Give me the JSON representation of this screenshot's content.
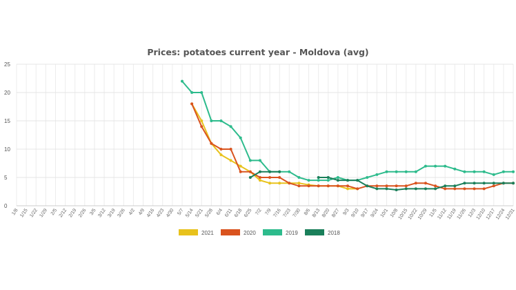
{
  "chart_data": {
    "type": "line",
    "title": "Prices: potatoes current year - Moldova (avg)",
    "xlabel": "",
    "ylabel": "",
    "ylim": [
      0,
      25
    ],
    "yticks": [
      0,
      5,
      10,
      15,
      20,
      25
    ],
    "grid": true,
    "legend_position": "bottom",
    "x": [
      "1/8",
      "1/15",
      "1/22",
      "1/29",
      "2/5",
      "2/12",
      "2/19",
      "2/26",
      "3/5",
      "3/12",
      "3/19",
      "3/26",
      "4/2",
      "4/9",
      "4/16",
      "4/23",
      "4/30",
      "5/7",
      "5/14",
      "5/21",
      "5/28",
      "6/4",
      "6/11",
      "6/18",
      "6/25",
      "7/2",
      "7/9",
      "7/16",
      "7/23",
      "7/30",
      "8/6",
      "8/13",
      "8/20",
      "8/27",
      "9/3",
      "9/10",
      "9/17",
      "9/24",
      "10/1",
      "10/8",
      "10/15",
      "10/22",
      "10/29",
      "11/5",
      "11/12",
      "11/19",
      "11/26",
      "12/3",
      "12/10",
      "12/17",
      "12/24",
      "12/31"
    ],
    "series": [
      {
        "name": "2021",
        "color": "#e8c21c",
        "values": [
          null,
          null,
          null,
          null,
          null,
          null,
          null,
          null,
          null,
          null,
          null,
          null,
          null,
          null,
          null,
          null,
          null,
          null,
          18,
          15,
          11,
          9,
          8,
          7,
          6,
          4.5,
          4,
          4,
          4,
          4,
          3.7,
          3.5,
          3.5,
          3.5,
          3,
          3,
          null,
          null,
          null,
          null,
          null,
          null,
          null,
          null,
          null,
          null,
          null,
          null,
          null,
          null,
          null,
          null
        ]
      },
      {
        "name": "2020",
        "color": "#d9531e",
        "values": [
          null,
          null,
          null,
          null,
          null,
          null,
          null,
          null,
          null,
          null,
          null,
          null,
          null,
          null,
          null,
          null,
          null,
          null,
          18,
          14,
          11,
          10,
          10,
          6,
          6,
          5,
          5,
          5,
          4,
          3.5,
          3.5,
          3.5,
          3.5,
          3.5,
          3.5,
          3,
          3.5,
          3.5,
          3.5,
          3.5,
          3.5,
          4,
          4,
          3.5,
          3,
          3,
          3,
          3,
          3,
          3.5,
          4,
          4
        ]
      },
      {
        "name": "2019",
        "color": "#2dbb8c",
        "values": [
          null,
          null,
          null,
          null,
          null,
          null,
          null,
          null,
          null,
          null,
          null,
          null,
          null,
          null,
          null,
          null,
          null,
          22,
          20,
          20,
          15,
          15,
          14,
          12,
          8,
          8,
          6,
          6,
          6,
          5,
          4.5,
          4.5,
          4.5,
          5,
          4.5,
          4.5,
          5,
          5.5,
          6,
          6,
          6,
          6,
          7,
          7,
          7,
          6.5,
          6,
          6,
          6,
          5.5,
          6,
          6
        ]
      },
      {
        "name": "2018",
        "color": "#1a7f5a",
        "values": [
          null,
          null,
          null,
          null,
          null,
          null,
          null,
          null,
          null,
          null,
          null,
          null,
          null,
          null,
          null,
          null,
          null,
          null,
          null,
          null,
          null,
          null,
          null,
          null,
          5,
          6,
          6,
          6,
          null,
          null,
          null,
          5,
          5,
          4.5,
          4.5,
          4.5,
          3.5,
          3,
          3,
          2.8,
          3,
          3,
          3,
          3,
          3.5,
          3.5,
          4,
          4,
          4,
          4,
          4,
          4
        ]
      }
    ]
  }
}
